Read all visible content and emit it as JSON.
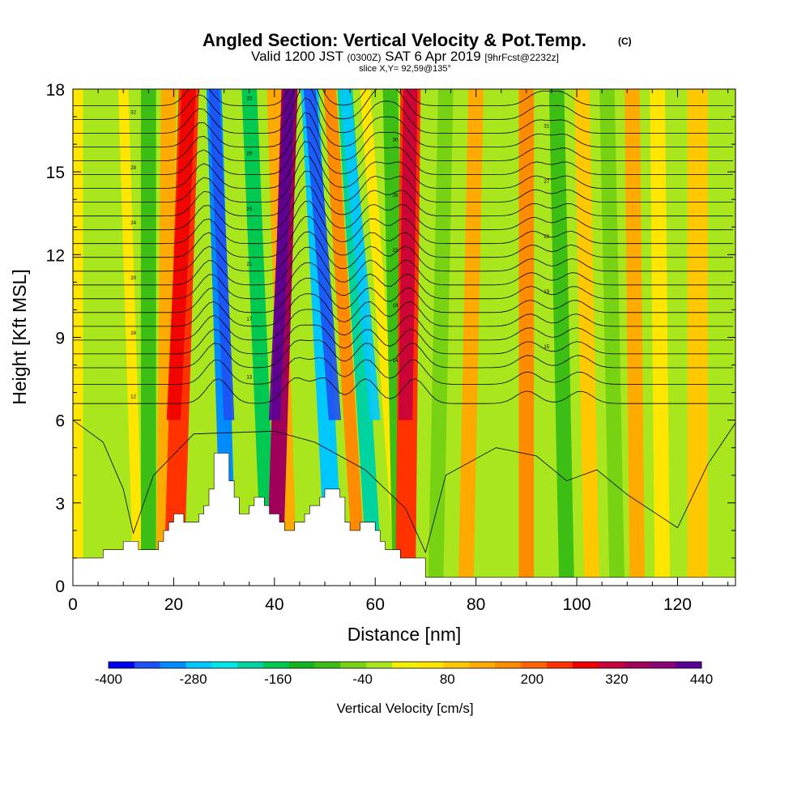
{
  "chart_data": {
    "type": "heatmap",
    "title": "Angled Section: Vertical Velocity & Pot.Temp.",
    "title_suffix": "(C)",
    "subtitle": {
      "valid_prefix": "Valid 1200 JST",
      "utc": "(0300Z)",
      "date": "SAT 6 Apr 2019",
      "forecast": "[9hrFcst@2232z]"
    },
    "slice_label": "slice X,Y= 92,59@135°",
    "xlabel": "Distance [nm]",
    "ylabel": "Height [Kft MSL]",
    "xlim": [
      0,
      131.5
    ],
    "ylim": [
      0,
      18
    ],
    "x_ticks": [
      "0",
      "20",
      "40",
      "60",
      "80",
      "100",
      "120"
    ],
    "x_tick_values": [
      0,
      20,
      40,
      60,
      80,
      100,
      120
    ],
    "y_ticks": [
      "0",
      "3",
      "6",
      "9",
      "12",
      "15",
      "18"
    ],
    "y_tick_values": [
      0,
      3,
      6,
      9,
      12,
      15,
      18
    ],
    "colorbar": {
      "label": "Vertical Velocity [cm/s]",
      "min": -400,
      "max": 440,
      "step": 35,
      "tick_labels": [
        "-400",
        "-280",
        "-160",
        "-40",
        "80",
        "200",
        "320",
        "440"
      ],
      "tick_values": [
        -400,
        -280,
        -160,
        -40,
        80,
        200,
        320,
        440
      ],
      "colors": [
        "#0000f0",
        "#1e50f5",
        "#008cff",
        "#00c8ff",
        "#00e6e6",
        "#00d2a0",
        "#00c850",
        "#14b41e",
        "#3cbe14",
        "#78d214",
        "#aae61e",
        "#f0f000",
        "#ffe600",
        "#ffc800",
        "#ffaa00",
        "#ff8c00",
        "#ff6400",
        "#ff3200",
        "#f00000",
        "#c8003c",
        "#a0005a",
        "#8c0078",
        "#5a0096"
      ]
    },
    "terrain_kft": [
      [
        0,
        1.0
      ],
      [
        6,
        1.0
      ],
      [
        6,
        1.3
      ],
      [
        10,
        1.3
      ],
      [
        10,
        1.6
      ],
      [
        13,
        1.6
      ],
      [
        13,
        1.3
      ],
      [
        17,
        1.3
      ],
      [
        17,
        1.6
      ],
      [
        18,
        1.6
      ],
      [
        18,
        2.0
      ],
      [
        19,
        2.0
      ],
      [
        19,
        2.3
      ],
      [
        20,
        2.3
      ],
      [
        20,
        2.6
      ],
      [
        22,
        2.6
      ],
      [
        22,
        2.3
      ],
      [
        25,
        2.3
      ],
      [
        25,
        2.6
      ],
      [
        26,
        2.6
      ],
      [
        26,
        2.9
      ],
      [
        27,
        2.9
      ],
      [
        27,
        3.5
      ],
      [
        28,
        3.5
      ],
      [
        28,
        4.8
      ],
      [
        31,
        4.8
      ],
      [
        31,
        3.8
      ],
      [
        32,
        3.8
      ],
      [
        32,
        3.2
      ],
      [
        33,
        3.2
      ],
      [
        33,
        2.6
      ],
      [
        35,
        2.6
      ],
      [
        35,
        2.9
      ],
      [
        36,
        2.9
      ],
      [
        36,
        3.2
      ],
      [
        38,
        3.2
      ],
      [
        38,
        2.9
      ],
      [
        39,
        2.9
      ],
      [
        39,
        2.6
      ],
      [
        41,
        2.6
      ],
      [
        41,
        2.3
      ],
      [
        42,
        2.3
      ],
      [
        42,
        2.0
      ],
      [
        44,
        2.0
      ],
      [
        44,
        2.3
      ],
      [
        46,
        2.3
      ],
      [
        46,
        2.6
      ],
      [
        47,
        2.6
      ],
      [
        47,
        2.9
      ],
      [
        49,
        2.9
      ],
      [
        49,
        3.2
      ],
      [
        50,
        3.2
      ],
      [
        50,
        3.5
      ],
      [
        53,
        3.5
      ],
      [
        53,
        3.2
      ],
      [
        54,
        3.2
      ],
      [
        54,
        2.3
      ],
      [
        55,
        2.3
      ],
      [
        55,
        2.0
      ],
      [
        57,
        2.0
      ],
      [
        57,
        2.3
      ],
      [
        60,
        2.3
      ],
      [
        60,
        2.0
      ],
      [
        61,
        2.0
      ],
      [
        61,
        1.6
      ],
      [
        62,
        1.6
      ],
      [
        62,
        1.3
      ],
      [
        65,
        1.3
      ],
      [
        65,
        1.0
      ],
      [
        70,
        1.0
      ],
      [
        70,
        0.3
      ],
      [
        131.5,
        0.3
      ]
    ],
    "w_field": {
      "units": "cm/s",
      "bands": [
        {
          "x_top": 1,
          "x_bottom": 1,
          "w": 30,
          "width": 2
        },
        {
          "x_top": 6,
          "x_bottom": 8,
          "w": -40,
          "width": 3
        },
        {
          "x_top": 10,
          "x_bottom": 13,
          "w": 30,
          "width": 2
        },
        {
          "x_top": 15,
          "x_bottom": 15,
          "w": -120,
          "width": 3
        },
        {
          "x_top": 19,
          "x_bottom": 18,
          "w": 120,
          "width": 3
        },
        {
          "x_top": 23,
          "x_bottom": 20,
          "w": 200,
          "width": 4
        },
        {
          "x_top": 28,
          "x_bottom": 31,
          "w": -300,
          "width": 3
        },
        {
          "x_top": 31,
          "x_bottom": 36,
          "w": -40,
          "width": 2
        },
        {
          "x_top": 35,
          "x_bottom": 39,
          "w": -160,
          "width": 3
        },
        {
          "x_top": 40,
          "x_bottom": 43,
          "w": 120,
          "width": 3
        },
        {
          "x_top": 43,
          "x_bottom": 40,
          "w": 330,
          "width": 3.2
        },
        {
          "x_top": 47,
          "x_bottom": 52,
          "w": -280,
          "width": 3.5
        },
        {
          "x_top": 51,
          "x_bottom": 57,
          "w": 130,
          "width": 2.5
        },
        {
          "x_top": 54,
          "x_bottom": 60,
          "w": -220,
          "width": 3
        },
        {
          "x_top": 58,
          "x_bottom": 65,
          "w": 40,
          "width": 2
        },
        {
          "x_top": 63,
          "x_bottom": 65,
          "w": -100,
          "width": 3
        },
        {
          "x_top": 67,
          "x_bottom": 66,
          "w": 220,
          "width": 4
        },
        {
          "x_top": 74,
          "x_bottom": 72,
          "w": -80,
          "width": 3
        },
        {
          "x_top": 80,
          "x_bottom": 78,
          "w": 120,
          "width": 3
        },
        {
          "x_top": 85,
          "x_bottom": 84,
          "w": -40,
          "width": 3
        },
        {
          "x_top": 90,
          "x_bottom": 90,
          "w": 130,
          "width": 3
        },
        {
          "x_top": 96,
          "x_bottom": 98,
          "w": -100,
          "width": 3
        },
        {
          "x_top": 101,
          "x_bottom": 103,
          "w": 80,
          "width": 3
        },
        {
          "x_top": 106,
          "x_bottom": 108,
          "w": -60,
          "width": 3
        },
        {
          "x_top": 111,
          "x_bottom": 112,
          "w": 90,
          "width": 3
        },
        {
          "x_top": 116,
          "x_bottom": 117,
          "w": 50,
          "width": 3
        },
        {
          "x_top": 124,
          "x_bottom": 124,
          "w": 60,
          "width": 4
        }
      ]
    },
    "theta_contours": {
      "units": "C",
      "levels": [
        {
          "y": 6.6,
          "label": "12"
        },
        {
          "y": 7.3,
          "label": "13"
        },
        {
          "y": 7.9,
          "label": "14"
        },
        {
          "y": 8.4,
          "label": "15"
        },
        {
          "y": 8.9,
          "label": "16"
        },
        {
          "y": 9.4,
          "label": "17"
        },
        {
          "y": 9.9,
          "label": "18"
        },
        {
          "y": 10.4,
          "label": "19"
        },
        {
          "y": 10.9,
          "label": "20"
        },
        {
          "y": 11.4,
          "label": "21"
        },
        {
          "y": 11.9,
          "label": "22"
        },
        {
          "y": 12.4,
          "label": "23"
        },
        {
          "y": 12.9,
          "label": "24"
        },
        {
          "y": 13.4,
          "label": "25"
        },
        {
          "y": 13.9,
          "label": "26"
        },
        {
          "y": 14.4,
          "label": "27"
        },
        {
          "y": 14.9,
          "label": "28"
        },
        {
          "y": 15.4,
          "label": "29"
        },
        {
          "y": 15.9,
          "label": "30"
        },
        {
          "y": 16.4,
          "label": "31"
        },
        {
          "y": 16.9,
          "label": "32"
        },
        {
          "y": 17.4,
          "label": "33"
        }
      ],
      "wave_crests_nm": [
        29,
        44,
        50,
        58,
        68,
        90,
        101
      ]
    }
  }
}
